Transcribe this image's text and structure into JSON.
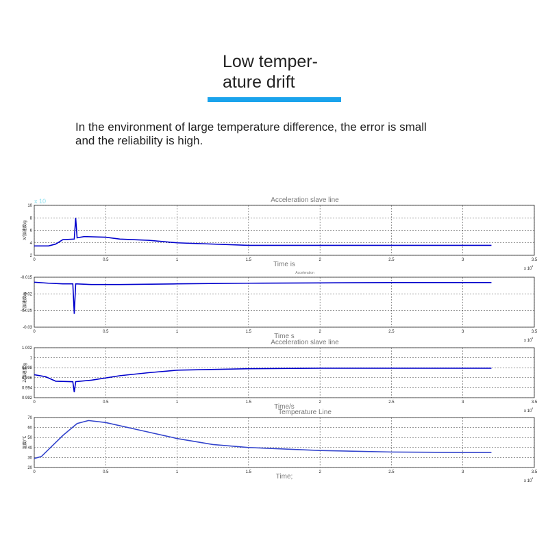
{
  "header": {
    "title_lines": [
      "Low temper-",
      "ature drift"
    ],
    "description_lines": [
      "In the environment of large temperature difference, the error is small",
      "and the reliability is high."
    ]
  },
  "chart_data": [
    {
      "type": "line",
      "title": "Acceleration slave line",
      "y_label": "X/加速度/g",
      "x_label": "Time is",
      "y_exponent": "x 10",
      "x_exponent": {
        "base": "x 10",
        "power": "4"
      },
      "xlim": [
        0,
        3.5
      ],
      "xticks": [
        0,
        0.5,
        1,
        1.5,
        2,
        2.5,
        3,
        3.5
      ],
      "ylim": [
        2,
        10
      ],
      "yticks": [
        2,
        4,
        6,
        8,
        10
      ],
      "grid": true,
      "x": [
        0,
        0.1,
        0.15,
        0.2,
        0.28,
        0.29,
        0.3,
        0.35,
        0.5,
        0.6,
        0.8,
        1.0,
        1.5,
        2,
        2.5,
        3,
        3.2
      ],
      "series": [
        {
          "color": "#0000cc",
          "values": [
            3.5,
            3.5,
            3.8,
            4.5,
            4.6,
            8,
            4.8,
            5,
            4.9,
            4.6,
            4.4,
            4,
            3.6,
            3.6,
            3.6,
            3.6,
            3.6
          ]
        }
      ]
    },
    {
      "type": "line",
      "title": "Acceleration",
      "y_label": "Y/加速度/g",
      "x_label": "Time s",
      "x_exponent": {
        "base": "x 10",
        "power": "4"
      },
      "xlim": [
        0,
        3.5
      ],
      "xticks": [
        0,
        0.5,
        1,
        1.5,
        2,
        2.5,
        3,
        3.5
      ],
      "ylim": [
        -0.03,
        -0.015
      ],
      "yticks": [
        -0.03,
        -0.025,
        -0.02,
        -0.015
      ],
      "grid": true,
      "x": [
        0,
        0.1,
        0.2,
        0.27,
        0.28,
        0.29,
        0.4,
        0.6,
        1,
        1.5,
        2,
        2.5,
        3,
        3.2
      ],
      "series": [
        {
          "color": "#0000cc",
          "values": [
            -0.0165,
            -0.0168,
            -0.017,
            -0.017,
            -0.026,
            -0.017,
            -0.0172,
            -0.0172,
            -0.017,
            -0.0168,
            -0.0167,
            -0.0166,
            -0.0166,
            -0.0166
          ]
        }
      ]
    },
    {
      "type": "line",
      "title": "Acceleration slave line",
      "y_label": "Z/加速度/g",
      "x_label": "Time/s",
      "x_exponent": {
        "base": "x 10",
        "power": "4"
      },
      "xlim": [
        0,
        3.5
      ],
      "xticks": [
        0,
        0.5,
        1,
        1.5,
        2,
        2.5,
        3,
        3.5
      ],
      "ylim": [
        0.992,
        1.002
      ],
      "yticks": [
        0.992,
        0.994,
        0.996,
        0.998,
        1,
        1.002
      ],
      "grid": true,
      "x": [
        0,
        0.08,
        0.15,
        0.27,
        0.28,
        0.29,
        0.4,
        0.6,
        0.8,
        1,
        1.5,
        2,
        2.5,
        3,
        3.2
      ],
      "series": [
        {
          "color": "#0000cc",
          "values": [
            0.9966,
            0.9962,
            0.9953,
            0.9952,
            0.9931,
            0.9952,
            0.9955,
            0.9964,
            0.997,
            0.9975,
            0.9978,
            0.9979,
            0.9979,
            0.9979,
            0.9979
          ]
        }
      ]
    },
    {
      "type": "line",
      "title": "Temperature Line",
      "y_label": "温度/℃",
      "x_label": "Time;",
      "x_exponent": {
        "base": "x 10",
        "power": "4"
      },
      "xlim": [
        0,
        3.5
      ],
      "xticks": [
        0,
        0.5,
        1,
        1.5,
        2,
        2.5,
        3,
        3.5
      ],
      "ylim": [
        20,
        70
      ],
      "yticks": [
        20,
        30,
        40,
        50,
        60,
        70
      ],
      "grid": true,
      "x": [
        0,
        0.05,
        0.1,
        0.2,
        0.3,
        0.38,
        0.5,
        0.75,
        1,
        1.25,
        1.5,
        2,
        2.5,
        3,
        3.2
      ],
      "series": [
        {
          "color": "#3344cc",
          "values": [
            29,
            31,
            38,
            52,
            64,
            67,
            65,
            57,
            49,
            43,
            40,
            37,
            35.5,
            35,
            35
          ]
        }
      ]
    }
  ]
}
